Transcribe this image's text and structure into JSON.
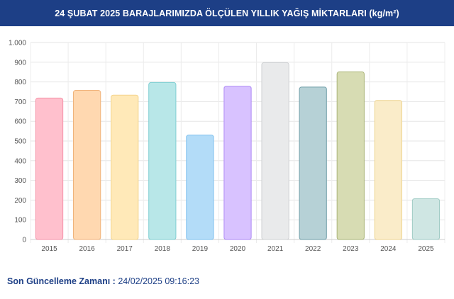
{
  "header": {
    "title": "24 ŞUBAT 2025 BARAJLARIMIZDA ÖLÇÜLEN YILLIK YAĞIŞ MİKTARLARI (kg/m²)"
  },
  "footer": {
    "label": "Son Güncelleme Zamanı :",
    "value": "24/02/2025 09:16:23"
  },
  "chart_data": {
    "type": "bar",
    "title": "24 ŞUBAT 2025 BARAJLARIMIZDA ÖLÇÜLEN YILLIK YAĞIŞ MİKTARLARI (kg/m²)",
    "xlabel": "",
    "ylabel": "",
    "categories": [
      "2015",
      "2016",
      "2017",
      "2018",
      "2019",
      "2020",
      "2021",
      "2022",
      "2023",
      "2024",
      "2025"
    ],
    "values": [
      718,
      757,
      733,
      797,
      530,
      778,
      898,
      774,
      851,
      706,
      207
    ],
    "ylim": [
      0,
      1000
    ],
    "yticks": [
      0,
      100,
      200,
      300,
      400,
      500,
      600,
      700,
      800,
      900,
      1000
    ],
    "ytick_labels": [
      "0",
      "100",
      "200",
      "300",
      "400",
      "500",
      "600",
      "700",
      "800",
      "900",
      "1.000"
    ],
    "grid": true,
    "legend": "none",
    "colors": {
      "fill": [
        "#ffc0cd",
        "#ffd8b0",
        "#ffe9b8",
        "#b8e7e8",
        "#b3dcf8",
        "#d8c2ff",
        "#e9eaeb",
        "#b6d1d6",
        "#d7dcb3",
        "#faecc9",
        "#cfe6e3"
      ],
      "stroke": [
        "#f592a8",
        "#f0b27a",
        "#f3d38a",
        "#7fcfd2",
        "#7ec0ee",
        "#ad88f5",
        "#cfd1d3",
        "#6f9ea8",
        "#aab477",
        "#eed490",
        "#9fcbc4"
      ]
    }
  }
}
